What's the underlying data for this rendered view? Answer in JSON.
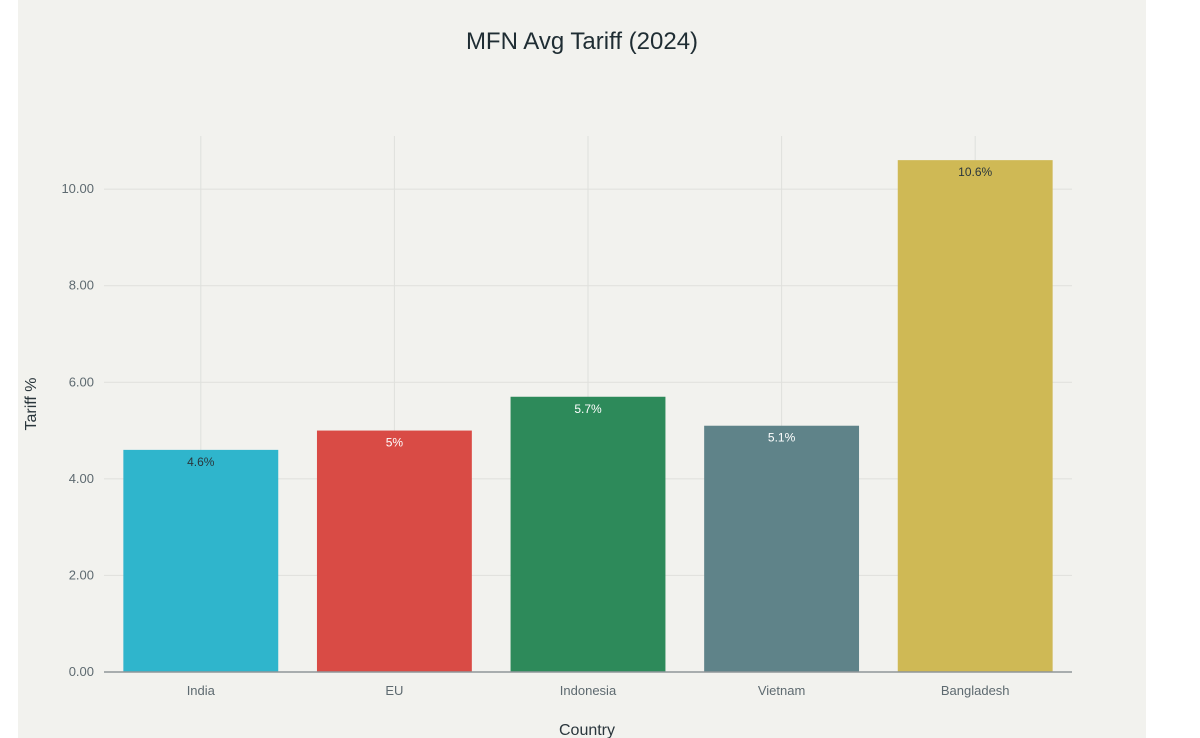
{
  "chart_data": {
    "type": "bar",
    "title": "MFN Avg Tariff (2024)",
    "xlabel": "Country",
    "ylabel": "Tariff %",
    "categories": [
      "India",
      "EU",
      "Indonesia",
      "Vietnam",
      "Bangladesh"
    ],
    "values": [
      4.6,
      5.0,
      5.7,
      5.1,
      10.6
    ],
    "data_labels": [
      "4.6%",
      "5%",
      "5.7%",
      "5.1%",
      "10.6%"
    ],
    "colors": [
      "#2fb5cc",
      "#d94b45",
      "#2d8a5a",
      "#5f8389",
      "#cfb955"
    ],
    "label_colors": [
      "#2a363c",
      "#ffffff",
      "#ffffff",
      "#ffffff",
      "#2a363c"
    ],
    "ylim": [
      0,
      11.1
    ],
    "yticks": [
      0,
      2,
      4,
      6,
      8,
      10
    ],
    "ytick_labels": [
      "0.00",
      "2.00",
      "4.00",
      "6.00",
      "8.00",
      "10.00"
    ],
    "grid": true,
    "legend": false
  }
}
